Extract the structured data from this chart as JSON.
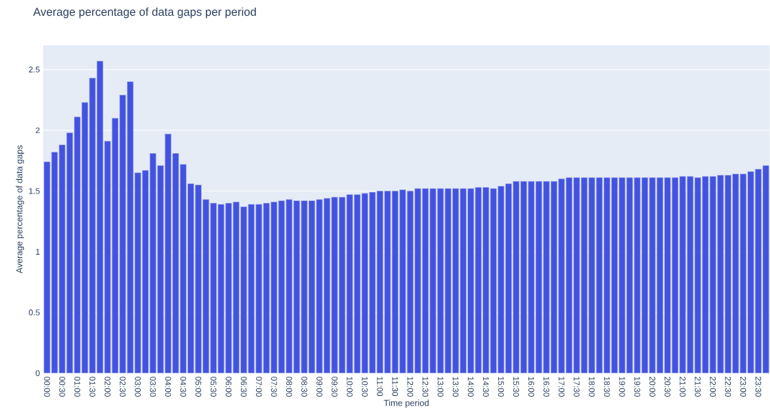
{
  "chart_data": {
    "type": "bar",
    "title": "Average percentage of data gaps per period",
    "xlabel": "Time period",
    "ylabel": "Average percentage of data gaps",
    "categories": [
      "00:00",
      null,
      "00:30",
      null,
      "01:00",
      null,
      "01:30",
      null,
      "02:00",
      null,
      "02:30",
      null,
      "03:00",
      null,
      "03:30",
      null,
      "04:00",
      null,
      "04:30",
      null,
      "05:00",
      null,
      "05:30",
      null,
      "06:00",
      null,
      "06:30",
      null,
      "07:00",
      null,
      "07:30",
      null,
      "08:00",
      null,
      "08:30",
      null,
      "09:00",
      null,
      "09:30",
      null,
      "10:00",
      null,
      "10:30",
      null,
      "11:00",
      null,
      "11:30",
      null,
      "12:00",
      null,
      "12:30",
      null,
      "13:00",
      null,
      "13:30",
      null,
      "14:00",
      null,
      "14:30",
      null,
      "15:00",
      null,
      "15:30",
      null,
      "16:00",
      null,
      "16:30",
      null,
      "17:00",
      null,
      "17:30",
      null,
      "18:00",
      null,
      "18:30",
      null,
      "19:00",
      null,
      "19:30",
      null,
      "20:00",
      null,
      "20:30",
      null,
      "21:00",
      null,
      "21:30",
      null,
      "22:00",
      null,
      "22:30",
      null,
      "23:00",
      null,
      "23:30",
      null
    ],
    "values": [
      1.74,
      1.82,
      1.88,
      1.98,
      2.11,
      2.23,
      2.43,
      2.57,
      1.91,
      2.1,
      2.29,
      2.4,
      1.65,
      1.67,
      1.81,
      1.71,
      1.97,
      1.81,
      1.72,
      1.56,
      1.55,
      1.43,
      1.4,
      1.39,
      1.4,
      1.41,
      1.37,
      1.39,
      1.39,
      1.4,
      1.41,
      1.42,
      1.43,
      1.42,
      1.42,
      1.42,
      1.43,
      1.44,
      1.45,
      1.45,
      1.47,
      1.47,
      1.48,
      1.49,
      1.5,
      1.5,
      1.5,
      1.51,
      1.5,
      1.52,
      1.52,
      1.52,
      1.52,
      1.52,
      1.52,
      1.52,
      1.52,
      1.53,
      1.53,
      1.52,
      1.54,
      1.56,
      1.58,
      1.58,
      1.58,
      1.58,
      1.58,
      1.58,
      1.6,
      1.61,
      1.61,
      1.61,
      1.61,
      1.61,
      1.61,
      1.61,
      1.61,
      1.61,
      1.61,
      1.61,
      1.61,
      1.61,
      1.61,
      1.61,
      1.62,
      1.62,
      1.61,
      1.62,
      1.62,
      1.63,
      1.63,
      1.64,
      1.64,
      1.66,
      1.68,
      1.71
    ],
    "color": "#4353df",
    "ylim": [
      0,
      2.7
    ],
    "yticks": [
      0,
      0.5,
      1,
      1.5,
      2,
      2.5
    ],
    "grid": "y"
  }
}
